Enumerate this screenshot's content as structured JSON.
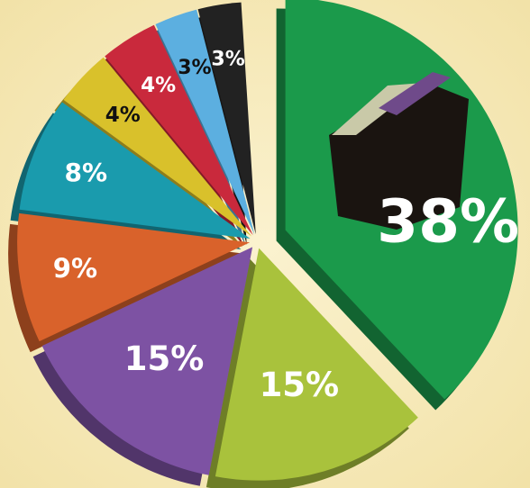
{
  "chart_data": {
    "type": "pie",
    "values": [
      38,
      15,
      15,
      9,
      8,
      4,
      4,
      3,
      3
    ],
    "value_labels": [
      "38%",
      "15%",
      "15%",
      "9%",
      "8%",
      "4%",
      "4%",
      "3%",
      "3%"
    ],
    "colors": [
      "#1b9a4b",
      "#a9c23c",
      "#7d52a3",
      "#d9622b",
      "#1a9bad",
      "#d9c12b",
      "#c9293c",
      "#5cafe0",
      "#222222"
    ],
    "label_colors": [
      "#ffffff",
      "#ffffff",
      "#ffffff",
      "#ffffff",
      "#ffffff",
      "#111111",
      "#ffffff",
      "#111111",
      "#ffffff"
    ]
  }
}
